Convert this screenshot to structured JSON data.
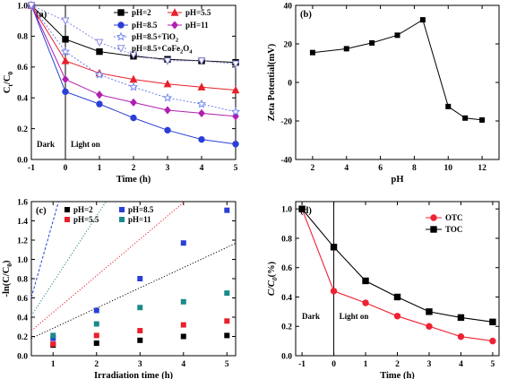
{
  "chart_data": [
    {
      "id": "a",
      "type": "line",
      "panel_label": "(a)",
      "xlabel": "Time (h)",
      "ylabel": "Ct/C0",
      "ylabel_main": "C",
      "ylabel_sub1": "t",
      "ylabel_mid": "/C",
      "ylabel_sub2": "0",
      "xlim": [
        -1,
        5
      ],
      "ylim": [
        0,
        1.0
      ],
      "xticks": [
        -1,
        0,
        1,
        2,
        3,
        4,
        5
      ],
      "yticks": [
        0.0,
        0.2,
        0.4,
        0.6,
        0.8,
        1.0
      ],
      "ytick_labels": [
        "0.0",
        "0.2",
        "0.4",
        "0.6",
        "0.8",
        "1.0"
      ],
      "divider_x": 0,
      "annotations": {
        "dark": "Dark",
        "light": "Light on"
      },
      "x": [
        -1,
        0,
        1,
        2,
        3,
        4,
        5
      ],
      "series": [
        {
          "name": "pH=2",
          "color": "#000000",
          "marker": "square",
          "dash": "",
          "values": [
            1.0,
            0.78,
            0.7,
            0.67,
            0.65,
            0.64,
            0.63
          ]
        },
        {
          "name": "pH=5.5",
          "color": "#e8202a",
          "marker": "triangle",
          "dash": "",
          "values": [
            1.0,
            0.64,
            0.56,
            0.52,
            0.49,
            0.47,
            0.45
          ]
        },
        {
          "name": "pH=8.5",
          "color": "#2a3fd8",
          "marker": "circle",
          "dash": "",
          "values": [
            1.0,
            0.44,
            0.36,
            0.27,
            0.19,
            0.13,
            0.1
          ]
        },
        {
          "name": "pH=11",
          "color": "#b020b0",
          "marker": "diamond",
          "dash": "",
          "values": [
            1.0,
            0.52,
            0.42,
            0.37,
            0.32,
            0.3,
            0.28
          ]
        },
        {
          "name": "pH=8.5+TiO",
          "name_sub": "2",
          "color": "#6a7ff0",
          "marker": "star",
          "dash": "2,2",
          "values": [
            1.0,
            0.7,
            0.55,
            0.47,
            0.4,
            0.36,
            0.31
          ]
        },
        {
          "name": "pH=8.5+CoFe",
          "name_sub": "2",
          "name_tail": "O",
          "name_sub2": "4",
          "color": "#8a8ae0",
          "marker": "triangle-down",
          "dash": "2,2",
          "values": [
            1.0,
            0.9,
            0.76,
            0.68,
            0.64,
            0.64,
            0.62
          ]
        }
      ]
    },
    {
      "id": "b",
      "type": "line",
      "panel_label": "(b)",
      "xlabel": "pH",
      "ylabel": "Zeta Potential(mV)",
      "xlim": [
        1,
        13
      ],
      "ylim": [
        -40,
        40
      ],
      "xticks": [
        2,
        4,
        6,
        8,
        10,
        12
      ],
      "yticks": [
        -40,
        -20,
        0,
        20,
        40
      ],
      "x": [
        2,
        4,
        5.5,
        7,
        8.5,
        10,
        11,
        12
      ],
      "series": [
        {
          "color": "#000000",
          "marker": "square",
          "values": [
            15.5,
            17.5,
            20.5,
            24.5,
            32.5,
            -12.5,
            -18.5,
            -19.5
          ]
        }
      ]
    },
    {
      "id": "c",
      "type": "scatter",
      "panel_label": "(c)",
      "xlabel": "Irradiation time (h)",
      "ylabel": "-ln(C/C0)",
      "ylabel_main": "-ln(C/C",
      "ylabel_sub": "0",
      "ylabel_tail": ")",
      "xlim": [
        0.5,
        5.2
      ],
      "ylim": [
        0,
        1.6
      ],
      "xticks": [
        1,
        2,
        3,
        4,
        5
      ],
      "yticks": [
        0.0,
        0.2,
        0.4,
        0.6,
        0.8,
        1.0,
        1.2,
        1.4,
        1.6
      ],
      "ytick_labels": [
        "0.0",
        "0.2",
        "0.4",
        "0.6",
        "0.8",
        "1.0",
        "1.2",
        "1.4",
        "1.6"
      ],
      "x": [
        1,
        2,
        3,
        4,
        5
      ],
      "series": [
        {
          "name": "pH=2",
          "color": "#000000",
          "values": [
            0.11,
            0.13,
            0.16,
            0.2,
            0.21
          ],
          "fit": [
            0.075,
            0.21
          ]
        },
        {
          "name": "pH=8.5",
          "color": "#2a3fd8",
          "values": [
            0.18,
            0.47,
            0.8,
            1.17,
            1.51
          ],
          "fit": [
            -0.19,
            1.59
          ]
        },
        {
          "name": "pH=5.5",
          "color": "#e8202a",
          "values": [
            0.12,
            0.21,
            0.26,
            0.32,
            0.36
          ],
          "fit": [
            0.07,
            0.38
          ]
        },
        {
          "name": "pH=11",
          "color": "#1a8a8a",
          "values": [
            0.21,
            0.33,
            0.5,
            0.56,
            0.65
          ],
          "fit": [
            0.07,
            0.69
          ]
        }
      ]
    },
    {
      "id": "d",
      "type": "line",
      "panel_label": "(d)",
      "xlabel": "Time (h)",
      "ylabel": "C/C0(%)",
      "ylabel_main": "C/C",
      "ylabel_sub": "0",
      "ylabel_tail": "(%)",
      "xlim": [
        -1.2,
        5.2
      ],
      "ylim": [
        0,
        1.05
      ],
      "xticks": [
        -1,
        0,
        1,
        2,
        3,
        4,
        5
      ],
      "yticks": [
        0.0,
        0.2,
        0.4,
        0.6,
        0.8,
        1.0
      ],
      "ytick_labels": [
        "0.0",
        "0.2",
        "0.4",
        "0.6",
        "0.8",
        "1.0"
      ],
      "divider_x": 0,
      "annotations": {
        "dark": "Dark",
        "light": "Light on"
      },
      "x": [
        -1,
        0,
        1,
        2,
        3,
        4,
        5
      ],
      "series": [
        {
          "name": "OTC",
          "color": "#ee2233",
          "marker": "circle",
          "values": [
            1.0,
            0.44,
            0.36,
            0.27,
            0.2,
            0.13,
            0.1
          ]
        },
        {
          "name": "TOC",
          "color": "#000000",
          "marker": "square",
          "values": [
            1.0,
            0.74,
            0.51,
            0.4,
            0.3,
            0.26,
            0.23
          ]
        }
      ]
    }
  ]
}
